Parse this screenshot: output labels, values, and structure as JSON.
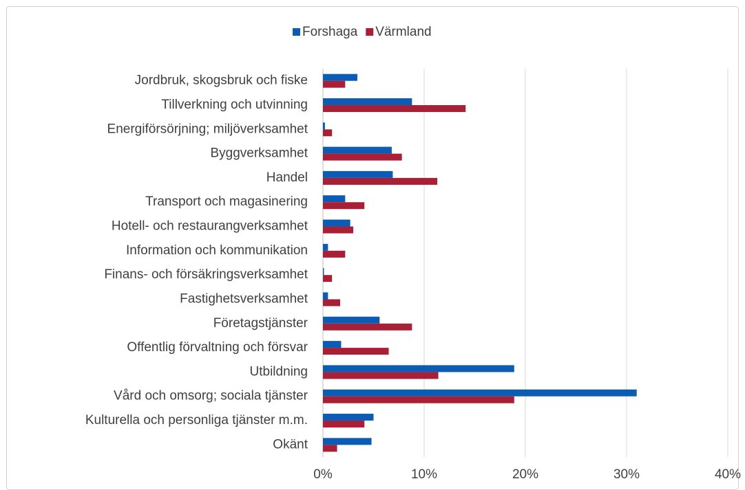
{
  "chart_data": {
    "type": "bar",
    "orientation": "horizontal",
    "categories": [
      "Jordbruk, skogsbruk och fiske",
      "Tillverkning och utvinning",
      "Energiförsörjning; miljöverksamhet",
      "Byggverksamhet",
      "Handel",
      "Transport och magasinering",
      "Hotell- och restaurangverksamhet",
      "Information och kommunikation",
      "Finans- och försäkringsverksamhet",
      "Fastighetsverksamhet",
      "Företagstjänster",
      "Offentlig förvaltning och försvar",
      "Utbildning",
      "Vård och omsorg; sociala tjänster",
      "Kulturella och personliga tjänster m.m.",
      "Okänt"
    ],
    "series": [
      {
        "name": "Forshaga",
        "color": "#0a5cb4",
        "values": [
          3.4,
          8.8,
          0.2,
          6.8,
          6.9,
          2.2,
          2.7,
          0.5,
          0.1,
          0.5,
          5.6,
          1.8,
          18.9,
          31.0,
          5.0,
          4.8
        ]
      },
      {
        "name": "Värmland",
        "color": "#a91f35",
        "values": [
          2.2,
          14.1,
          0.9,
          7.8,
          11.3,
          4.1,
          3.0,
          2.2,
          0.9,
          1.7,
          8.8,
          6.5,
          11.4,
          18.9,
          4.1,
          1.4
        ]
      }
    ],
    "xlim": [
      0,
      40
    ],
    "xticks": [
      {
        "value": 0,
        "label": "0%"
      },
      {
        "value": 10,
        "label": "10%"
      },
      {
        "value": 20,
        "label": "20%"
      },
      {
        "value": 30,
        "label": "30%"
      },
      {
        "value": 40,
        "label": "40%"
      }
    ],
    "grid": true,
    "legend": "top"
  }
}
